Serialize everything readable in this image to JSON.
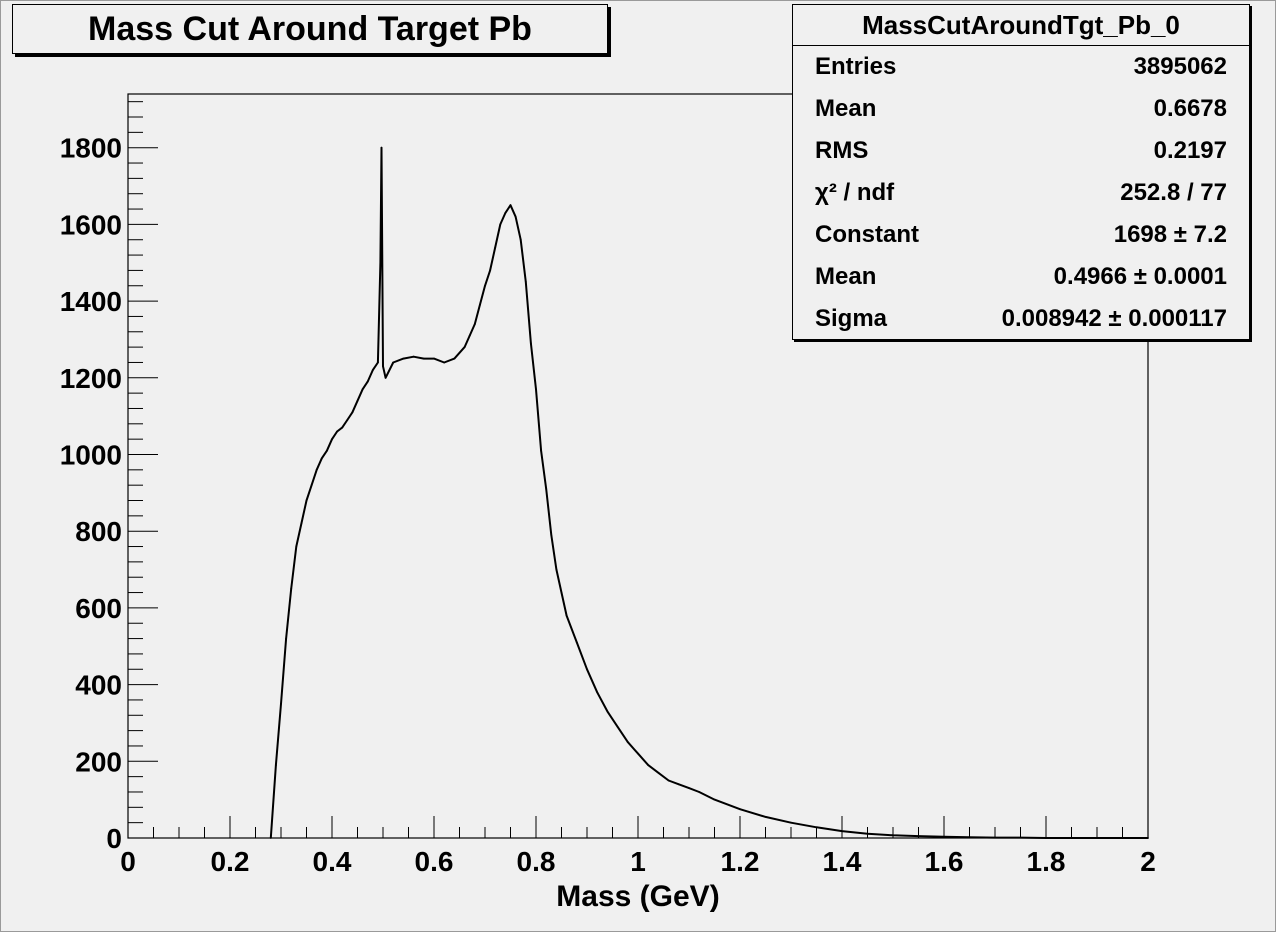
{
  "chart_data": {
    "type": "line",
    "title": "Mass Cut Around Target Pb",
    "xlabel": "Mass (GeV)",
    "ylabel": "",
    "xlim": [
      0,
      2
    ],
    "ylim": [
      0,
      1940
    ],
    "x_ticks": [
      "0",
      "0.2",
      "0.4",
      "0.6",
      "0.8",
      "1",
      "1.2",
      "1.4",
      "1.6",
      "1.8",
      "2"
    ],
    "x_tick_values": [
      0,
      0.2,
      0.4,
      0.6,
      0.8,
      1.0,
      1.2,
      1.4,
      1.6,
      1.8,
      2.0
    ],
    "y_ticks": [
      "0",
      "200",
      "400",
      "600",
      "800",
      "1000",
      "1200",
      "1400",
      "1600",
      "1800"
    ],
    "y_tick_values": [
      0,
      200,
      400,
      600,
      800,
      1000,
      1200,
      1400,
      1600,
      1800
    ],
    "grid": false,
    "series": [
      {
        "x": [
          0.28,
          0.29,
          0.3,
          0.31,
          0.32,
          0.33,
          0.34,
          0.35,
          0.36,
          0.37,
          0.38,
          0.39,
          0.4,
          0.41,
          0.42,
          0.43,
          0.44,
          0.45,
          0.46,
          0.47,
          0.48,
          0.49,
          0.495,
          0.497,
          0.5,
          0.505,
          0.52,
          0.54,
          0.56,
          0.58,
          0.6,
          0.62,
          0.64,
          0.66,
          0.67,
          0.68,
          0.69,
          0.7,
          0.71,
          0.72,
          0.73,
          0.74,
          0.75,
          0.76,
          0.77,
          0.78,
          0.79,
          0.8,
          0.81,
          0.82,
          0.83,
          0.84,
          0.85,
          0.86,
          0.88,
          0.9,
          0.92,
          0.94,
          0.96,
          0.98,
          1.0,
          1.02,
          1.04,
          1.06,
          1.08,
          1.1,
          1.12,
          1.15,
          1.2,
          1.25,
          1.3,
          1.35,
          1.4,
          1.45,
          1.5,
          1.55,
          1.6,
          1.65,
          1.7,
          1.75,
          1.8,
          1.9,
          2.0
        ],
        "y": [
          0,
          190,
          350,
          520,
          650,
          760,
          820,
          880,
          920,
          960,
          990,
          1010,
          1040,
          1060,
          1070,
          1090,
          1110,
          1140,
          1170,
          1190,
          1220,
          1240,
          1500,
          1800,
          1230,
          1200,
          1240,
          1250,
          1255,
          1250,
          1250,
          1240,
          1250,
          1280,
          1310,
          1340,
          1390,
          1440,
          1480,
          1540,
          1600,
          1630,
          1650,
          1620,
          1560,
          1450,
          1290,
          1170,
          1010,
          910,
          790,
          700,
          640,
          580,
          510,
          440,
          380,
          330,
          290,
          250,
          220,
          190,
          170,
          150,
          140,
          130,
          120,
          100,
          75,
          55,
          40,
          28,
          18,
          11,
          7,
          5,
          3,
          2,
          1,
          1,
          0,
          0,
          0
        ]
      }
    ]
  },
  "stats": {
    "name": "MassCutAroundTgt_Pb_0",
    "rows": [
      {
        "label": "Entries",
        "value": "3895062"
      },
      {
        "label": "Mean",
        "value": "0.6678"
      },
      {
        "label": "RMS",
        "value": "0.2197"
      },
      {
        "label": "χ² / ndf",
        "value": "252.8 / 77"
      },
      {
        "label": "Constant",
        "value": "1698 ± 7.2"
      },
      {
        "label": "Mean",
        "value": "0.4966 ± 0.0001"
      },
      {
        "label": "Sigma",
        "value": "0.008942 ± 0.000117"
      }
    ]
  },
  "colors": {
    "background": "#f0f0f0",
    "line": "#000000",
    "frame": "#000000"
  }
}
